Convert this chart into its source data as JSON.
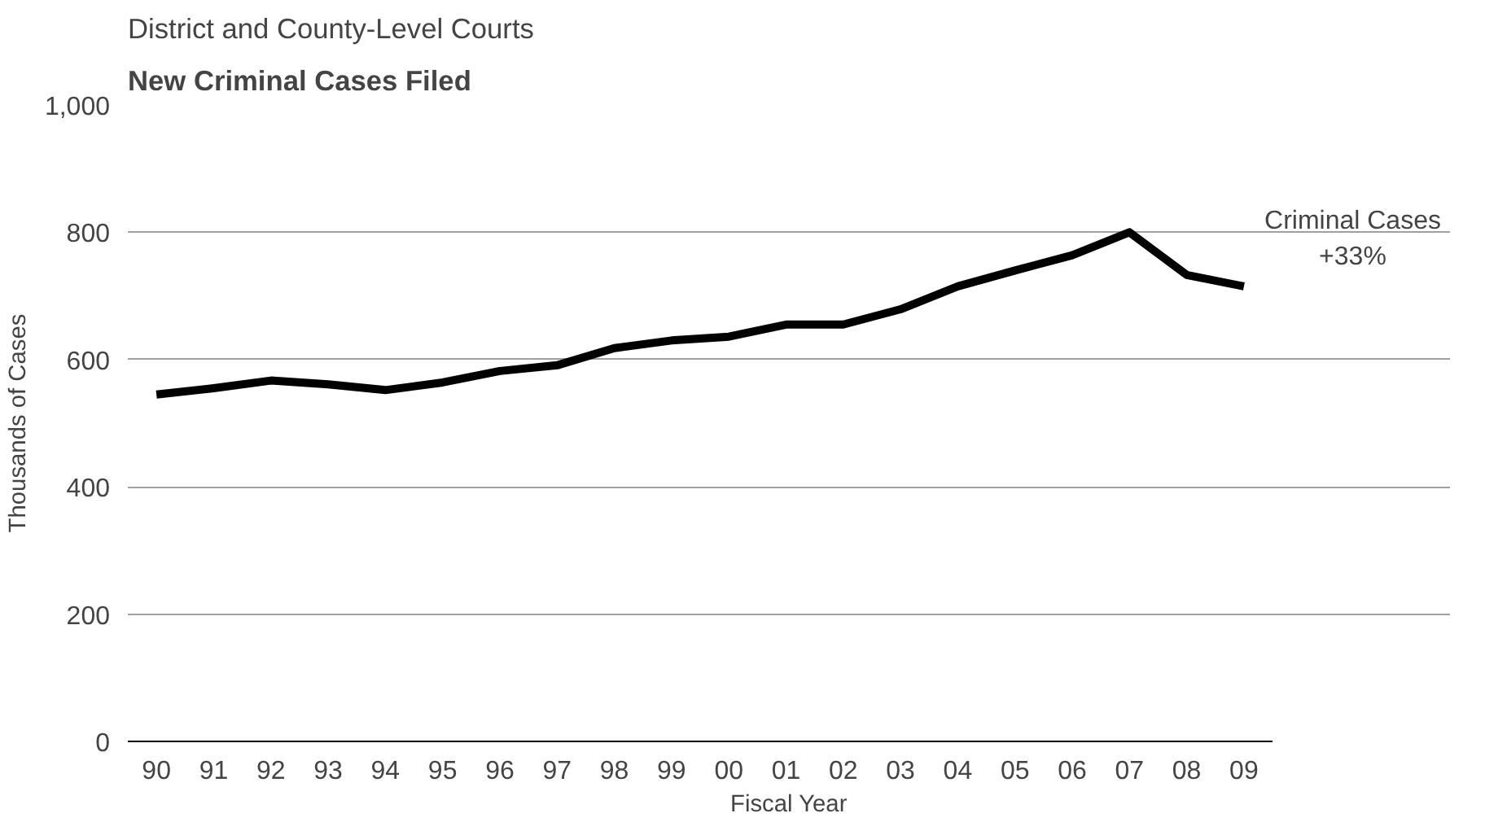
{
  "chart_data": {
    "type": "line",
    "title": "District and County-Level Courts",
    "subtitle": "New Criminal Cases Filed",
    "xlabel": "Fiscal Year",
    "ylabel": "Thousands of Cases",
    "categories": [
      "90",
      "91",
      "92",
      "93",
      "94",
      "95",
      "96",
      "97",
      "98",
      "99",
      "00",
      "01",
      "02",
      "03",
      "04",
      "05",
      "06",
      "07",
      "08",
      "09"
    ],
    "series": [
      {
        "color": "#000000",
        "values": [
          545,
          555,
          567,
          561,
          552,
          564,
          582,
          591,
          618,
          630,
          636,
          655,
          655,
          679,
          715,
          740,
          764,
          800,
          733,
          715
        ]
      }
    ],
    "ylim": [
      0,
      1000
    ],
    "yticks": [
      0,
      200,
      400,
      600,
      800,
      {
        "value": 1000,
        "label": "1,000"
      }
    ],
    "grid": "y",
    "marker": "none",
    "line_style": "solid",
    "annotations": [
      "Criminal Cases\n+33%"
    ]
  }
}
